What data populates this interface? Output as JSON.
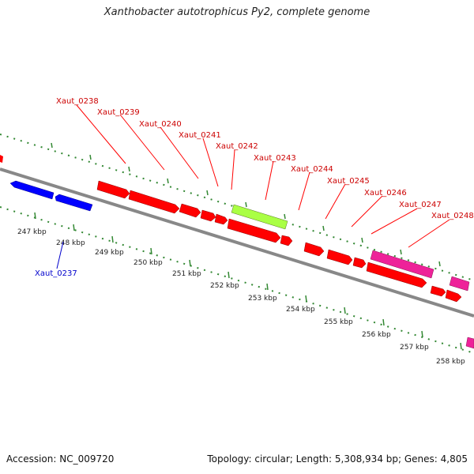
{
  "title": "Xanthobacter autotrophicus Py2, complete genome",
  "footer": {
    "accession": "Accession: NC_009720",
    "summary": "Topology: circular; Length: 5,308,934 bp; Genes: 4,805"
  },
  "colors": {
    "forward_gene": "#ff0000",
    "reverse_gene": "#0000ff",
    "highlight_gene": "#aaff44",
    "pink_gene": "#ee2299",
    "backbone": "#888888",
    "ticks": "#338833",
    "label_forward": "#cc0000",
    "label_reverse": "#0000cc"
  },
  "scale_labels": [
    "247 kbp",
    "248 kbp",
    "249 kbp",
    "250 kbp",
    "251 kbp",
    "252 kbp",
    "253 kbp",
    "254 kbp",
    "255 kbp",
    "256 kbp",
    "257 kbp",
    "258 kbp"
  ],
  "gene_labels_forward": [
    "Xaut_0238",
    "Xaut_0239",
    "Xaut_0240",
    "Xaut_0241",
    "Xaut_0242",
    "Xaut_0243",
    "Xaut_0244",
    "Xaut_0245",
    "Xaut_0246",
    "Xaut_0247",
    "Xaut_0248"
  ],
  "gene_labels_reverse": [
    "Xaut_0237"
  ]
}
